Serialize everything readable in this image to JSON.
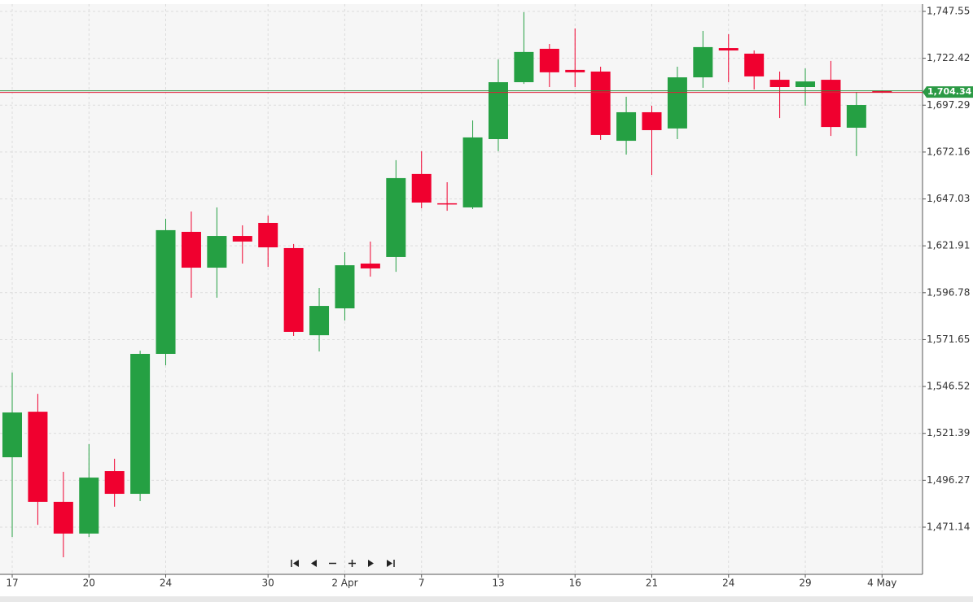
{
  "chart_data": {
    "type": "candlestick",
    "categories": [
      "17",
      null,
      null,
      "20",
      null,
      null,
      "24",
      null,
      null,
      null,
      "30",
      null,
      null,
      "2 Apr",
      null,
      null,
      "7",
      null,
      null,
      "13",
      null,
      null,
      "16",
      null,
      null,
      "21",
      null,
      null,
      "24",
      null,
      null,
      "29",
      null,
      null,
      "4 May"
    ],
    "series": [
      {
        "up_color": "#25a043",
        "down_color": "#f0002f",
        "open": [
          1508.6,
          1533.0,
          1484.7,
          1467.7,
          1501.2,
          1489.0,
          1564.0,
          1629.4,
          1610.2,
          1627.2,
          1634.2,
          1620.7,
          1574.0,
          1588.4,
          1612.4,
          1615.9,
          1660.4,
          1644.7,
          1642.5,
          1679.1,
          1709.6,
          1727.5,
          1716.2,
          1715.3,
          1678.2,
          1693.5,
          1684.8,
          1712.2,
          1727.9,
          1724.9,
          1710.9,
          1707.0,
          1710.9,
          1685.2,
          1704.8
        ],
        "high": [
          1554.0,
          1542.6,
          1500.8,
          1515.6,
          1507.8,
          1565.7,
          1636.4,
          1640.3,
          1642.5,
          1632.9,
          1638.1,
          1622.9,
          1599.3,
          1618.5,
          1624.2,
          1667.8,
          1672.6,
          1656.0,
          1689.1,
          1721.8,
          1747.1,
          1730.1,
          1738.4,
          1717.9,
          1701.8,
          1697.0,
          1717.9,
          1737.1,
          1735.3,
          1726.6,
          1715.3,
          1717.0,
          1721.0,
          1704.4,
          1705.2
        ],
        "low": [
          1465.9,
          1472.4,
          1455.0,
          1465.9,
          1482.1,
          1485.1,
          1557.9,
          1594.1,
          1594.1,
          1612.4,
          1610.6,
          1573.6,
          1565.3,
          1581.9,
          1605.4,
          1608.0,
          1642.0,
          1640.7,
          1641.6,
          1672.6,
          1708.7,
          1707.0,
          1707.0,
          1678.7,
          1670.8,
          1659.9,
          1679.1,
          1706.6,
          1709.6,
          1705.7,
          1690.4,
          1697.0,
          1680.8,
          1670.0,
          1703.9
        ],
        "close": [
          1532.6,
          1484.7,
          1467.7,
          1497.7,
          1489.0,
          1564.0,
          1630.3,
          1610.2,
          1627.2,
          1624.2,
          1621.1,
          1575.8,
          1589.7,
          1611.5,
          1609.8,
          1658.2,
          1645.1,
          1644.2,
          1680.0,
          1709.6,
          1725.8,
          1714.9,
          1714.9,
          1681.3,
          1693.5,
          1683.9,
          1712.2,
          1728.4,
          1726.6,
          1712.7,
          1707.0,
          1710.0,
          1685.6,
          1697.4,
          1704.34
        ]
      }
    ],
    "last_price": {
      "value": 1704.34,
      "label": "1,704.34"
    },
    "ylim": [
      1445.85,
      1751.47
    ],
    "yticks": [
      {
        "value": 1747.55,
        "label": "1,747.55"
      },
      {
        "value": 1722.42,
        "label": "1,722.42"
      },
      {
        "value": 1697.29,
        "label": "1,697.29"
      },
      {
        "value": 1672.16,
        "label": "1,672.16"
      },
      {
        "value": 1647.03,
        "label": "1,647.03"
      },
      {
        "value": 1621.91,
        "label": "1,621.91"
      },
      {
        "value": 1596.78,
        "label": "1,596.78"
      },
      {
        "value": 1571.65,
        "label": "1,571.65"
      },
      {
        "value": 1546.52,
        "label": "1,546.52"
      },
      {
        "value": 1521.39,
        "label": "1,521.39"
      },
      {
        "value": 1496.27,
        "label": "1,496.27"
      },
      {
        "value": 1471.14,
        "label": "1,471.14"
      }
    ],
    "grid": true
  }
}
